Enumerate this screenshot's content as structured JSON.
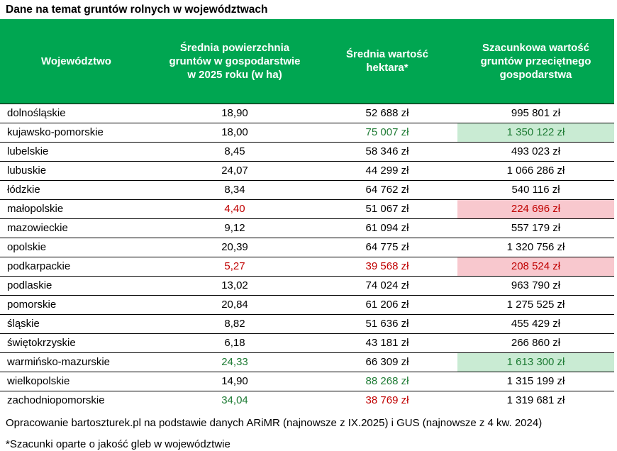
{
  "title": "Dane na temat gruntów rolnych w województwach",
  "colors": {
    "header_bg": "#00A651",
    "header_text": "#FFFFFF",
    "positive_text": "#1E7B34",
    "negative_text": "#C00000",
    "positive_bg": "#C9EBD3",
    "negative_bg": "#F8C8CE",
    "row_border": "#000000"
  },
  "table": {
    "columns": [
      "Województwo",
      "Średnia powierzchnia gruntów w gospodarstwie w 2025 roku (w ha)",
      "Średnia wartość hektara*",
      "Szacunkowa wartość gruntów przeciętnego gospodarstwa"
    ],
    "rows": [
      {
        "name": "dolnośląskie",
        "area": "18,90",
        "area_color": "black",
        "ha": "52 688 zł",
        "ha_color": "black",
        "farm": "995 801 zł",
        "farm_color": "black",
        "farm_bg": "none"
      },
      {
        "name": "kujawsko-pomorskie",
        "area": "18,00",
        "area_color": "black",
        "ha": "75 007 zł",
        "ha_color": "green",
        "farm": "1 350 122 zł",
        "farm_color": "green",
        "farm_bg": "green"
      },
      {
        "name": "lubelskie",
        "area": "8,45",
        "area_color": "black",
        "ha": "58 346 zł",
        "ha_color": "black",
        "farm": "493 023 zł",
        "farm_color": "black",
        "farm_bg": "none"
      },
      {
        "name": "lubuskie",
        "area": "24,07",
        "area_color": "black",
        "ha": "44 299 zł",
        "ha_color": "black",
        "farm": "1 066 286 zł",
        "farm_color": "black",
        "farm_bg": "none"
      },
      {
        "name": "łódzkie",
        "area": "8,34",
        "area_color": "black",
        "ha": "64 762 zł",
        "ha_color": "black",
        "farm": "540 116 zł",
        "farm_color": "black",
        "farm_bg": "none"
      },
      {
        "name": "małopolskie",
        "area": "4,40",
        "area_color": "red",
        "ha": "51 067 zł",
        "ha_color": "black",
        "farm": "224 696 zł",
        "farm_color": "red",
        "farm_bg": "red"
      },
      {
        "name": "mazowieckie",
        "area": "9,12",
        "area_color": "black",
        "ha": "61 094 zł",
        "ha_color": "black",
        "farm": "557 179 zł",
        "farm_color": "black",
        "farm_bg": "none"
      },
      {
        "name": "opolskie",
        "area": "20,39",
        "area_color": "black",
        "ha": "64 775 zł",
        "ha_color": "black",
        "farm": "1 320 756 zł",
        "farm_color": "black",
        "farm_bg": "none"
      },
      {
        "name": "podkarpackie",
        "area": "5,27",
        "area_color": "red",
        "ha": "39 568 zł",
        "ha_color": "red",
        "farm": "208 524 zł",
        "farm_color": "red",
        "farm_bg": "red"
      },
      {
        "name": "podlaskie",
        "area": "13,02",
        "area_color": "black",
        "ha": "74 024 zł",
        "ha_color": "black",
        "farm": "963 790 zł",
        "farm_color": "black",
        "farm_bg": "none"
      },
      {
        "name": "pomorskie",
        "area": "20,84",
        "area_color": "black",
        "ha": "61 206 zł",
        "ha_color": "black",
        "farm": "1 275 525 zł",
        "farm_color": "black",
        "farm_bg": "none"
      },
      {
        "name": "śląskie",
        "area": "8,82",
        "area_color": "black",
        "ha": "51 636 zł",
        "ha_color": "black",
        "farm": "455 429 zł",
        "farm_color": "black",
        "farm_bg": "none"
      },
      {
        "name": "świętokrzyskie",
        "area": "6,18",
        "area_color": "black",
        "ha": "43 181 zł",
        "ha_color": "black",
        "farm": "266 860 zł",
        "farm_color": "black",
        "farm_bg": "none"
      },
      {
        "name": "warmińsko-mazurskie",
        "area": "24,33",
        "area_color": "green",
        "ha": "66 309 zł",
        "ha_color": "black",
        "farm": "1 613 300 zł",
        "farm_color": "green",
        "farm_bg": "green"
      },
      {
        "name": "wielkopolskie",
        "area": "14,90",
        "area_color": "black",
        "ha": "88 268 zł",
        "ha_color": "green",
        "farm": "1 315 199 zł",
        "farm_color": "black",
        "farm_bg": "none"
      },
      {
        "name": "zachodniopomorskie",
        "area": "34,04",
        "area_color": "green",
        "ha": "38 769 zł",
        "ha_color": "red",
        "farm": "1 319 681 zł",
        "farm_color": "black",
        "farm_bg": "none"
      }
    ]
  },
  "footer": {
    "source": "Opracowanie bartoszturek.pl na podstawie danych ARiMR (najnowsze z IX.2025) i GUS (najnowsze z 4 kw. 2024)",
    "note": "*Szacunki oparte o jakość gleb w województwie"
  },
  "chart_data": {
    "type": "table",
    "title": "Dane na temat gruntów rolnych w województwach",
    "columns": [
      "Województwo",
      "Średnia powierzchnia gruntów w gospodarstwie w 2025 roku (w ha)",
      "Średnia wartość hektara* (zł)",
      "Szacunkowa wartość gruntów przeciętnego gospodarstwa (zł)"
    ],
    "rows": [
      [
        "dolnośląskie",
        18.9,
        52688,
        995801
      ],
      [
        "kujawsko-pomorskie",
        18.0,
        75007,
        1350122
      ],
      [
        "lubelskie",
        8.45,
        58346,
        493023
      ],
      [
        "lubuskie",
        24.07,
        44299,
        1066286
      ],
      [
        "łódzkie",
        8.34,
        64762,
        540116
      ],
      [
        "małopolskie",
        4.4,
        51067,
        224696
      ],
      [
        "mazowieckie",
        9.12,
        61094,
        557179
      ],
      [
        "opolskie",
        20.39,
        64775,
        1320756
      ],
      [
        "podkarpackie",
        5.27,
        39568,
        208524
      ],
      [
        "podlaskie",
        13.02,
        74024,
        963790
      ],
      [
        "pomorskie",
        20.84,
        61206,
        1275525
      ],
      [
        "śląskie",
        8.82,
        51636,
        455429
      ],
      [
        "świętokrzyskie",
        6.18,
        43181,
        266860
      ],
      [
        "warmińsko-mazurskie",
        24.33,
        66309,
        1613300
      ],
      [
        "wielkopolskie",
        14.9,
        88268,
        1315199
      ],
      [
        "zachodniopomorskie",
        34.04,
        38769,
        1319681
      ]
    ],
    "highlights": {
      "green_background_rows": [
        "kujawsko-pomorskie",
        "warmińsko-mazurskie"
      ],
      "red_background_rows": [
        "małopolskie",
        "podkarpackie"
      ],
      "green_text_cells": [
        "kujawsko-pomorskie:hektar",
        "warmińsko-mazurskie:area",
        "wielkopolskie:hektar",
        "zachodniopomorskie:area"
      ],
      "red_text_cells": [
        "małopolskie:area",
        "podkarpackie:area",
        "podkarpackie:hektar",
        "zachodniopomorskie:hektar"
      ]
    }
  }
}
